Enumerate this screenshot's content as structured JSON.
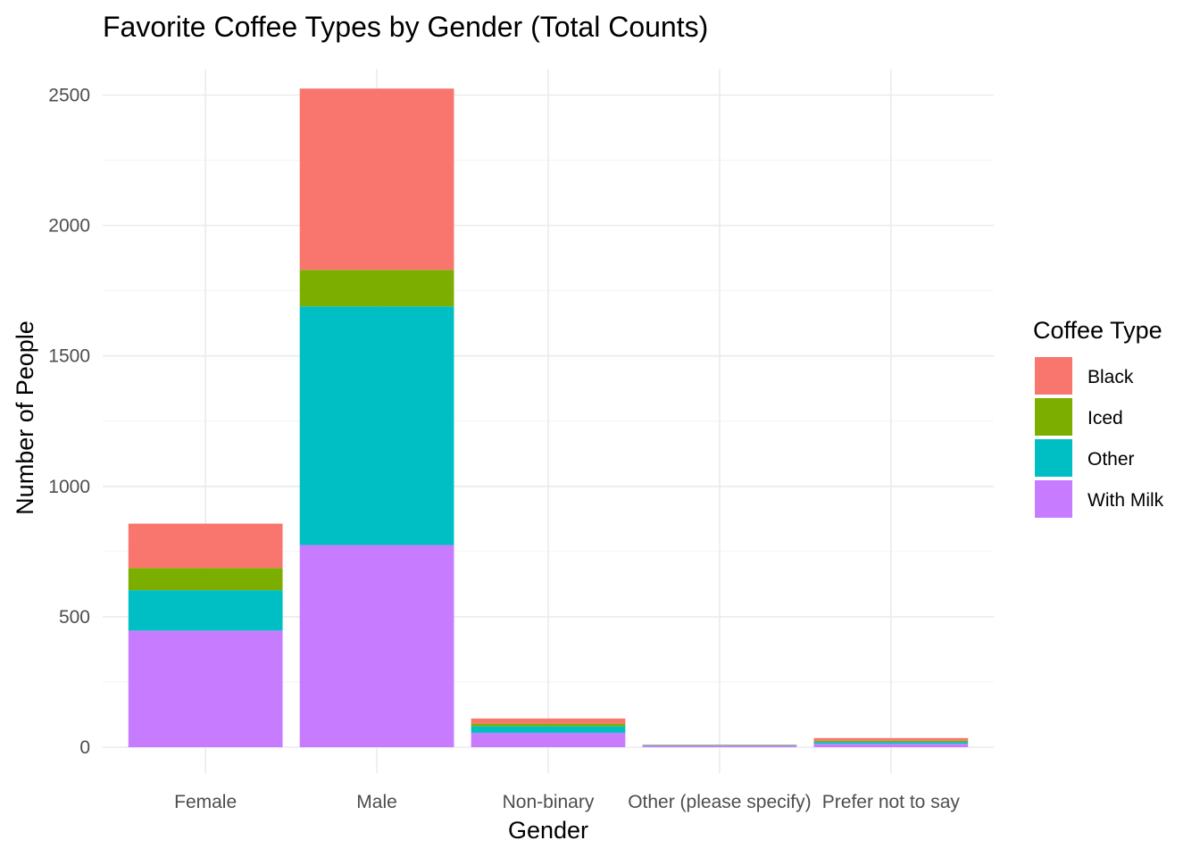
{
  "chart_data": {
    "type": "bar",
    "stacked": true,
    "title": "Favorite Coffee Types by Gender (Total Counts)",
    "xlabel": "Gender",
    "ylabel": "Number of People",
    "categories": [
      "Female",
      "Male",
      "Non-binary",
      "Other (please specify)",
      "Prefer not to say"
    ],
    "ylim": [
      -100,
      2600
    ],
    "yticks": [
      0,
      500,
      1000,
      1500,
      2000,
      2500
    ],
    "grid": true,
    "legend": {
      "title": "Coffee Type",
      "position": "right"
    },
    "series": [
      {
        "name": "Black",
        "color": "#F8766D",
        "values": [
          170,
          695,
          20,
          1,
          10
        ]
      },
      {
        "name": "Iced",
        "color": "#7CAE00",
        "values": [
          85,
          140,
          10,
          1,
          5
        ]
      },
      {
        "name": "Other",
        "color": "#00BFC4",
        "values": [
          155,
          915,
          25,
          2,
          7
        ]
      },
      {
        "name": "With Milk",
        "color": "#C77CFF",
        "values": [
          447,
          775,
          55,
          6,
          13
        ]
      }
    ]
  }
}
